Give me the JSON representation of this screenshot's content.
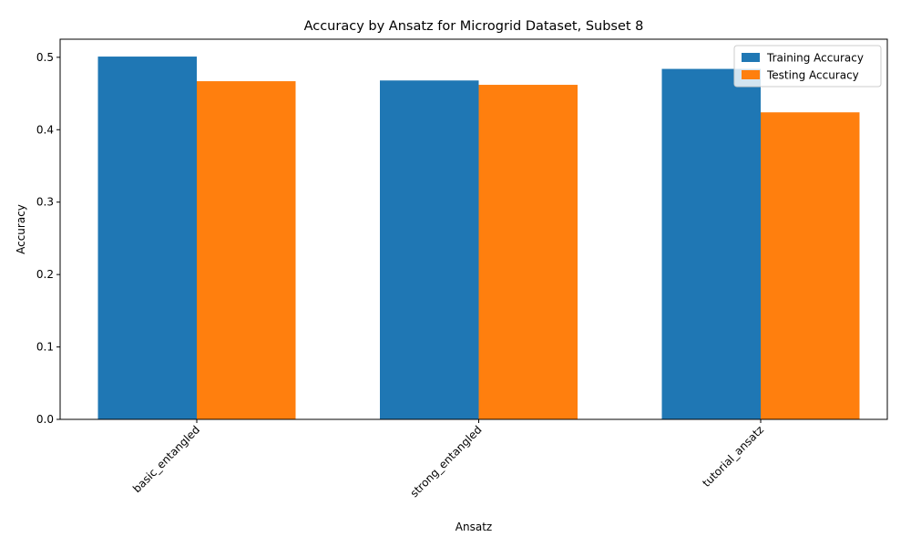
{
  "chart_data": {
    "type": "bar",
    "title": "Accuracy by Ansatz for Microgrid Dataset, Subset 8",
    "xlabel": "Ansatz",
    "ylabel": "Accuracy",
    "categories": [
      "basic_entangled",
      "strong_entangled",
      "tutorial_ansatz"
    ],
    "series": [
      {
        "name": "Training Accuracy",
        "color": "#1f77b4",
        "values": [
          0.501,
          0.468,
          0.484
        ]
      },
      {
        "name": "Testing Accuracy",
        "color": "#ff7f0e",
        "values": [
          0.467,
          0.462,
          0.424
        ]
      }
    ],
    "ylim": [
      0,
      0.525
    ],
    "yticks": [
      0.0,
      0.1,
      0.2,
      0.3,
      0.4,
      0.5
    ],
    "ytick_labels": [
      "0.0",
      "0.1",
      "0.2",
      "0.3",
      "0.4",
      "0.5"
    ],
    "grid": false,
    "legend_position": "top-right"
  }
}
